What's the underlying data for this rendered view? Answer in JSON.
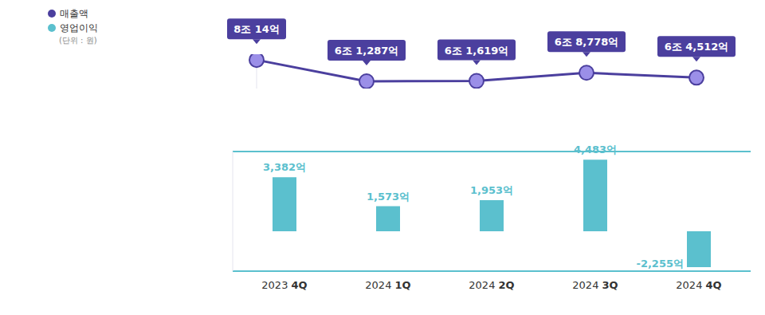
{
  "chart_data": [
    {
      "type": "line",
      "categories": [
        "2023 4Q",
        "2024 1Q",
        "2024 2Q",
        "2024 3Q",
        "2024 4Q"
      ],
      "series": [
        {
          "name": "매출액",
          "color": "#4b3f9e",
          "values": [
            80014,
            61287,
            61619,
            68778,
            64512
          ],
          "value_labels": [
            "8조 14억",
            "6조 1,287억",
            "6조 1,619억",
            "6조 8,778억",
            "6조 4,512억"
          ]
        }
      ],
      "ylim": [
        55000,
        85000
      ],
      "yticks": [
        60000,
        70000,
        80000
      ],
      "tick_labels": false,
      "data_labels": true,
      "legend": "upper left",
      "marker": "circle",
      "annotation": "(단위 : 원)"
    },
    {
      "type": "bar",
      "categories": [
        "2023 4Q",
        "2024 1Q",
        "2024 2Q",
        "2024 3Q",
        "2024 4Q"
      ],
      "series": [
        {
          "name": "영업이익",
          "color": "#5bc0ce",
          "values": [
            3382,
            1573,
            1953,
            4483,
            -2255
          ],
          "value_labels": [
            "3,382억",
            "1,573억",
            "1,953억",
            "4,483억",
            "-2,255억"
          ]
        }
      ],
      "ylim": [
        -2500,
        5000
      ],
      "yticks": [
        0
      ],
      "grid": true,
      "tick_labels": "x",
      "data_labels": true,
      "legend": "upper left"
    }
  ]
}
